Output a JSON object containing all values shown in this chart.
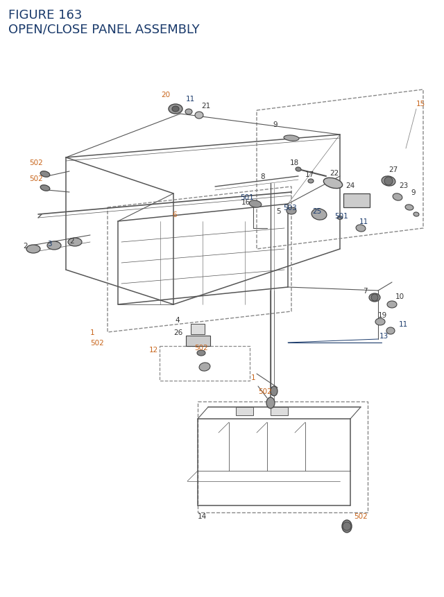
{
  "title_line1": "FIGURE 163",
  "title_line2": "OPEN/CLOSE PANEL ASSEMBLY",
  "title_color": "#1a3a6b",
  "title_fontsize": 13,
  "bg_color": "#ffffff",
  "label_color_orange": "#c8651b",
  "label_color_blue": "#1a3a6b",
  "label_color_black": "#333333",
  "fig_width": 6.4,
  "fig_height": 8.62,
  "dpi": 100
}
